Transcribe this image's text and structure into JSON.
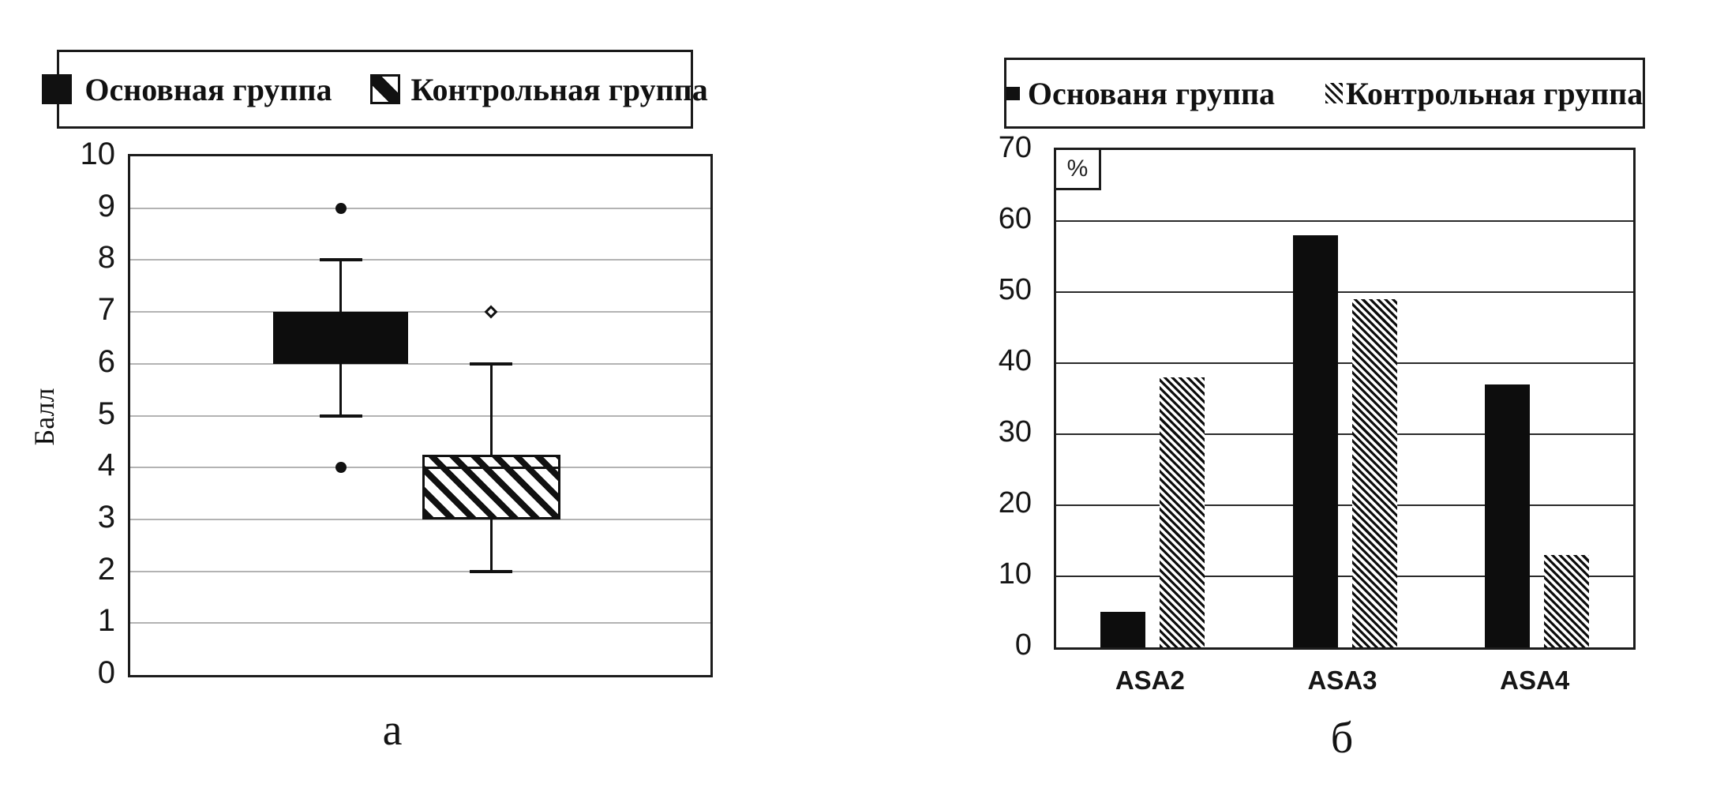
{
  "figure": {
    "panel_a": {
      "panel_label": "а",
      "y_axis_label": "Балл",
      "legend": [
        {
          "label": "Основная группа",
          "swatch": "solid-black-square"
        },
        {
          "label": "Контрольная группа",
          "swatch": "diagonal-stripe-square"
        }
      ]
    },
    "panel_b": {
      "panel_label": "б",
      "y_axis_unit": "%",
      "legend": [
        {
          "label": "Основаня группа",
          "swatch": "solid-black-square"
        },
        {
          "label": "Контрольная группа",
          "swatch": "diagonal-hatch"
        }
      ]
    }
  },
  "chart_data": [
    {
      "type": "boxplot",
      "panel": "а",
      "title": "",
      "ylabel": "Балл",
      "ylim": [
        0,
        10
      ],
      "yticks": [
        0,
        1,
        2,
        3,
        4,
        5,
        6,
        7,
        8,
        9,
        10
      ],
      "grid": "horizontal-light",
      "legend_position": "top",
      "series": [
        {
          "name": "Основная группа",
          "fill": "solid",
          "q1": 6,
          "q3": 7,
          "whisker_low": 5,
          "whisker_high": 8,
          "outliers": [
            {
              "value": 9,
              "marker": "filled-circle"
            },
            {
              "value": 4,
              "marker": "filled-circle"
            }
          ]
        },
        {
          "name": "Контрольная группа",
          "fill": "hatched",
          "q1": 3,
          "median": 4,
          "q3": 4.25,
          "whisker_low": 2,
          "whisker_high": 6,
          "outliers": [
            {
              "value": 7,
              "marker": "open-diamond"
            }
          ]
        }
      ]
    },
    {
      "type": "bar",
      "panel": "б",
      "title": "",
      "ylabel": "%",
      "ylim": [
        0,
        70
      ],
      "yticks": [
        0,
        10,
        20,
        30,
        40,
        50,
        60,
        70
      ],
      "grid": "horizontal-dark",
      "legend_position": "top",
      "categories": [
        "ASA2",
        "ASA3",
        "ASA4"
      ],
      "series": [
        {
          "name": "Основаня группа",
          "fill": "solid",
          "values": [
            5,
            58,
            37
          ]
        },
        {
          "name": "Контрольная группа",
          "fill": "hatched",
          "values": [
            38,
            49,
            13
          ]
        }
      ]
    }
  ]
}
